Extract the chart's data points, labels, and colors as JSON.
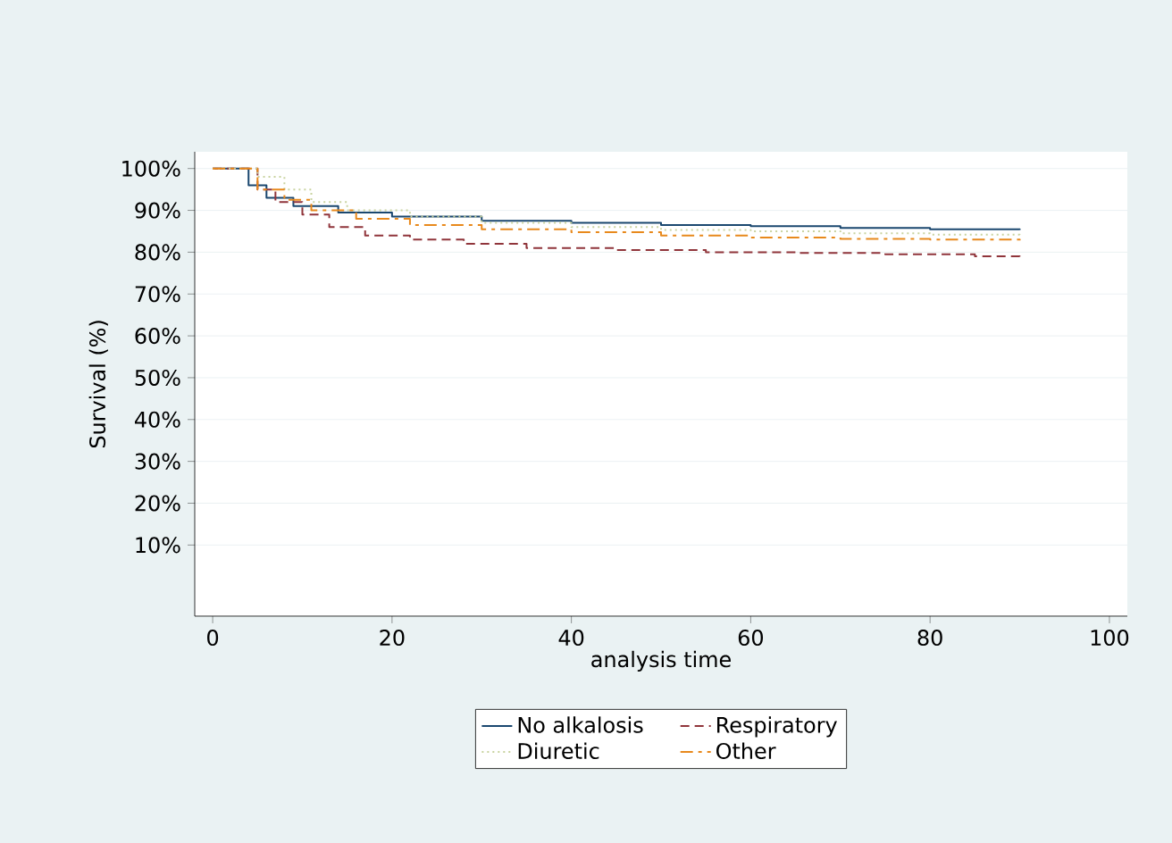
{
  "chart_data": {
    "type": "step",
    "xlabel": "analysis time",
    "ylabel": "Survival (%)",
    "xlim": [
      -2,
      102
    ],
    "ylim": [
      -7,
      104
    ],
    "xticks": [
      0,
      20,
      40,
      60,
      80,
      100
    ],
    "yticks": [
      {
        "value": 10,
        "label": "10%"
      },
      {
        "value": 20,
        "label": "20%"
      },
      {
        "value": 30,
        "label": "30%"
      },
      {
        "value": 40,
        "label": "40%"
      },
      {
        "value": 50,
        "label": "50%"
      },
      {
        "value": 60,
        "label": "60%"
      },
      {
        "value": 70,
        "label": "70%"
      },
      {
        "value": 80,
        "label": "80%"
      },
      {
        "value": 90,
        "label": "90%"
      },
      {
        "value": 100,
        "label": "100%"
      }
    ],
    "grid": "y",
    "legend": "bottom",
    "marker": "none",
    "series": [
      {
        "name": "No alkalosis",
        "color": "#1a476f",
        "line_style": "solid",
        "x": [
          0,
          3,
          4,
          6,
          9,
          14,
          20,
          30,
          40,
          50,
          60,
          70,
          80,
          90
        ],
        "values": [
          100,
          100,
          96,
          93,
          91,
          89.5,
          88.5,
          87.5,
          87,
          86.5,
          86.2,
          85.8,
          85.5,
          85.3
        ]
      },
      {
        "name": "Respiratory",
        "color": "#90353b",
        "line_style": "dashed",
        "x": [
          0,
          3,
          5,
          7,
          10,
          13,
          17,
          22,
          28,
          35,
          45,
          55,
          65,
          75,
          85,
          90
        ],
        "values": [
          100,
          100,
          95,
          92,
          89,
          86,
          84,
          83,
          82,
          81,
          80.5,
          80,
          79.8,
          79.5,
          79,
          78.7
        ]
      },
      {
        "name": "Diuretic",
        "color": "#c9d3a0",
        "line_style": "dotted",
        "x": [
          0,
          3,
          5,
          8,
          11,
          15,
          22,
          30,
          40,
          50,
          60,
          70,
          80,
          90
        ],
        "values": [
          100,
          100,
          98,
          95,
          92,
          90,
          88.5,
          87,
          86,
          85.3,
          85,
          84.5,
          84.2,
          84
        ]
      },
      {
        "name": "Other",
        "color": "#e8891c",
        "line_style": "dashdot",
        "x": [
          0,
          3,
          5,
          8,
          11,
          16,
          22,
          30,
          40,
          50,
          60,
          70,
          80,
          90
        ],
        "values": [
          100,
          100,
          95,
          92.5,
          90,
          88,
          86.5,
          85.5,
          84.8,
          84,
          83.5,
          83.2,
          83,
          82.8
        ]
      }
    ]
  }
}
